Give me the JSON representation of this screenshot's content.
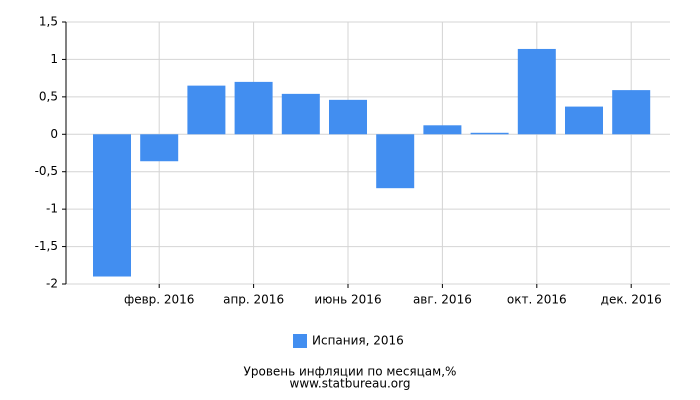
{
  "chart_data": {
    "type": "bar",
    "title": "Уровень инфляции по месяцам,%",
    "subtitle": "www.statbureau.org",
    "categories": [
      null,
      "февр. 2016",
      null,
      "апр. 2016",
      null,
      "июнь 2016",
      null,
      "авг. 2016",
      null,
      "окт. 2016",
      null,
      "дек. 2016"
    ],
    "series": [
      {
        "name": "Испания, 2016",
        "color": "#428ef0",
        "values": [
          -1.9,
          -0.36,
          0.65,
          0.7,
          0.54,
          0.46,
          -0.72,
          0.12,
          0.02,
          1.14,
          0.37,
          0.59
        ]
      }
    ],
    "ylim": [
      -2,
      1.5
    ],
    "yticks": [
      -2,
      {
        "value": -1.5,
        "label": "-1,5"
      },
      -1,
      {
        "value": -0.5,
        "label": "-0,5"
      },
      0,
      {
        "value": 0.5,
        "label": "0,5"
      },
      1,
      {
        "value": 1.5,
        "label": "1,5"
      }
    ],
    "grid": true
  }
}
